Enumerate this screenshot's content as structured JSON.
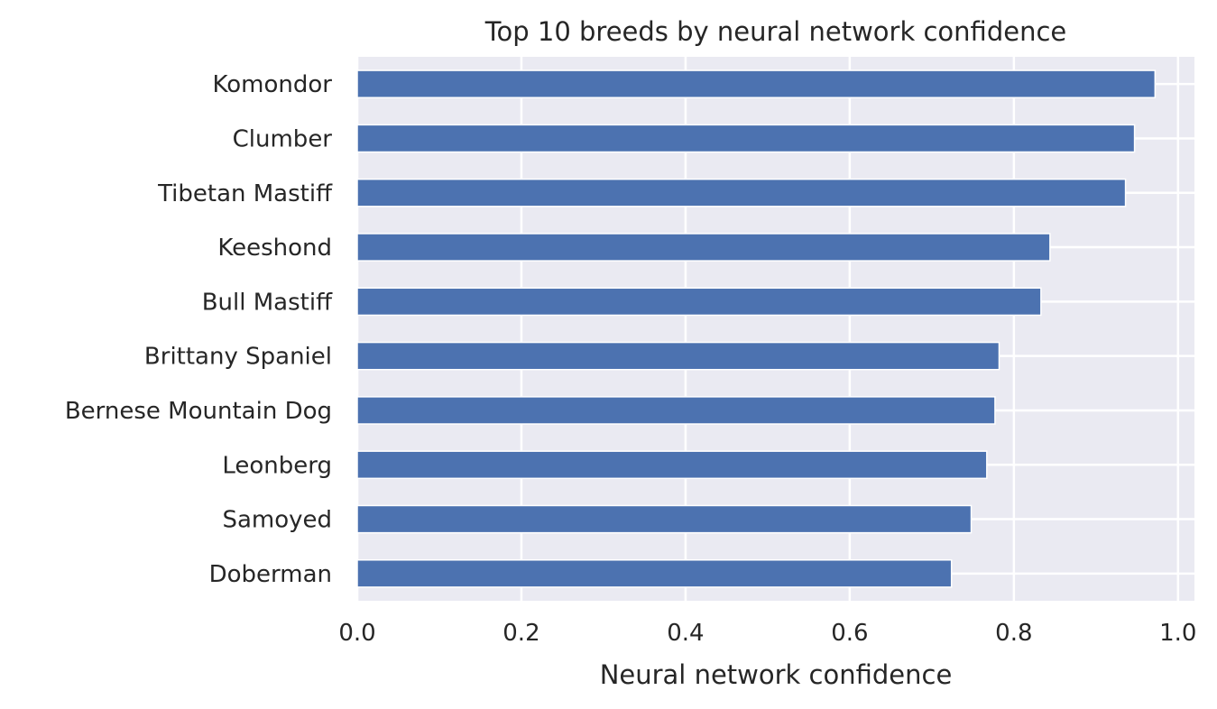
{
  "chart_data": {
    "type": "bar",
    "orientation": "horizontal",
    "title": "Top 10 breeds by neural network confidence",
    "xlabel": "Neural network confidence",
    "ylabel": "",
    "categories": [
      "Komondor",
      "Clumber",
      "Tibetan Mastiff",
      "Keeshond",
      "Bull Mastiff",
      "Brittany Spaniel",
      "Bernese Mountain Dog",
      "Leonberg",
      "Samoyed",
      "Doberman"
    ],
    "values": [
      0.972,
      0.947,
      0.936,
      0.844,
      0.833,
      0.782,
      0.777,
      0.767,
      0.748,
      0.724
    ],
    "xlim": [
      0.0,
      1.02
    ],
    "xticks": [
      "0.0",
      "0.2",
      "0.4",
      "0.6",
      "0.8",
      "1.0"
    ],
    "grid": true,
    "colors": {
      "bar": "#4c72b0",
      "background": "#eaeaf2",
      "grid": "#ffffff"
    }
  }
}
